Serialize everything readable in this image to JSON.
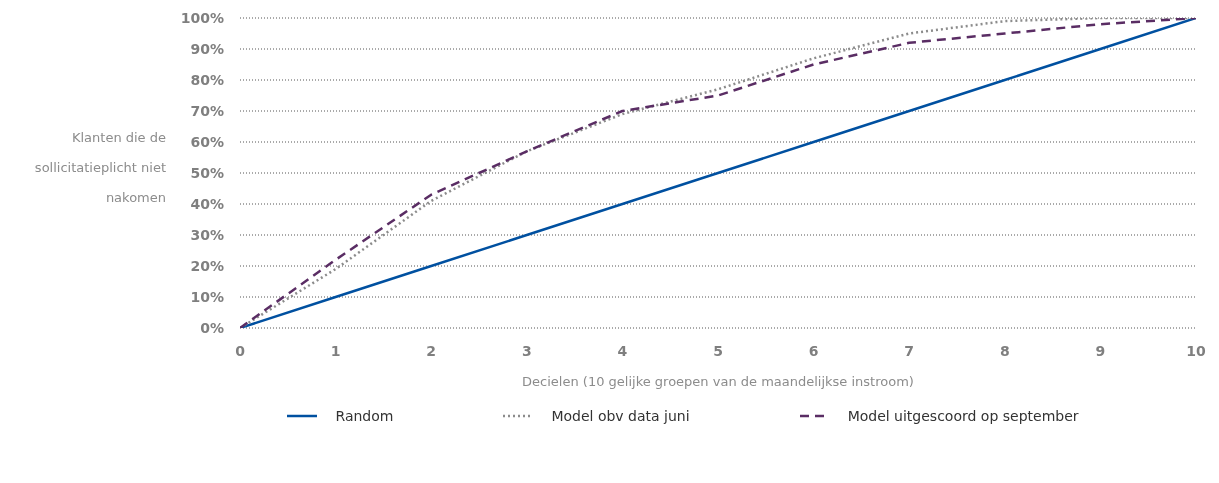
{
  "chart_data": {
    "type": "line",
    "xlabel": "Decielen (10 gelijke groepen van de maandelijkse instroom)",
    "ylabel": "Klanten die de sollicitatieplicht niet nakomen",
    "x": [
      0,
      1,
      2,
      3,
      4,
      5,
      6,
      7,
      8,
      9,
      10
    ],
    "series": [
      {
        "name": "Random",
        "color": "#0050a0",
        "line_style": "solid",
        "values": [
          0,
          10,
          20,
          30,
          40,
          50,
          60,
          70,
          80,
          90,
          100
        ]
      },
      {
        "name": "Model obv data juni",
        "color": "#8c8c8c",
        "line_style": "dotted",
        "values": [
          0,
          19,
          41,
          57,
          69,
          77,
          87,
          95,
          99,
          100,
          100
        ]
      },
      {
        "name": "Model uitgescoord op september",
        "color": "#5a2d64",
        "line_style": "dashed",
        "values": [
          0,
          22,
          43,
          57,
          70,
          75,
          85,
          92,
          95,
          98,
          100
        ]
      }
    ],
    "xlim": [
      0,
      10
    ],
    "xticks": [
      0,
      1,
      2,
      3,
      4,
      5,
      6,
      7,
      8,
      9,
      10
    ],
    "ylim": [
      0,
      100
    ],
    "yticks": [
      {
        "value": 0,
        "label": "0%"
      },
      {
        "value": 10,
        "label": "10%"
      },
      {
        "value": 20,
        "label": "20%"
      },
      {
        "value": 30,
        "label": "30%"
      },
      {
        "value": 40,
        "label": "40%"
      },
      {
        "value": 50,
        "label": "50%"
      },
      {
        "value": 60,
        "label": "60%"
      },
      {
        "value": 70,
        "label": "70%"
      },
      {
        "value": 80,
        "label": "80%"
      },
      {
        "value": 90,
        "label": "90%"
      },
      {
        "value": 100,
        "label": "100%"
      }
    ],
    "grid": "y",
    "legend": "bottom",
    "marker": "none"
  }
}
